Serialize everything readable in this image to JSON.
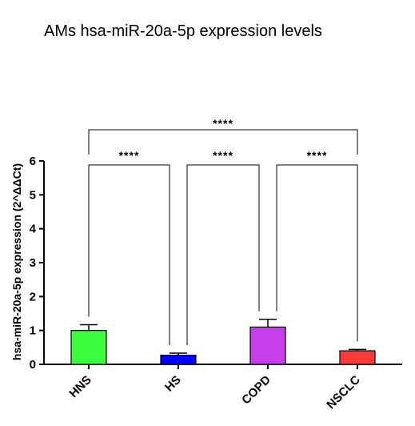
{
  "chart_data": {
    "type": "bar",
    "title": "AMs hsa-miR-20a-5p expression levels",
    "ylabel": "hsa-miR-20a-5p expression (2^ΔΔCt)",
    "xlabel": "",
    "categories": [
      "HNS",
      "HS",
      "COPD",
      "NSCLC"
    ],
    "values": [
      1.0,
      0.27,
      1.1,
      0.4
    ],
    "errors": [
      0.17,
      0.06,
      0.23,
      0.04
    ],
    "colors": [
      "#3dfc3d",
      "#0000ff",
      "#c63fe8",
      "#ff3a3a"
    ],
    "ylim": [
      0,
      6
    ],
    "yticks": [
      "0",
      "1",
      "2",
      "3",
      "4",
      "5",
      "6"
    ],
    "grid": false,
    "significance": [
      {
        "from": "HNS",
        "to": "HS",
        "label": "****"
      },
      {
        "from": "HS",
        "to": "COPD",
        "label": "****"
      },
      {
        "from": "COPD",
        "to": "NSCLC",
        "label": "****"
      },
      {
        "from": "HNS",
        "to": "NSCLC",
        "label": "****"
      }
    ]
  }
}
